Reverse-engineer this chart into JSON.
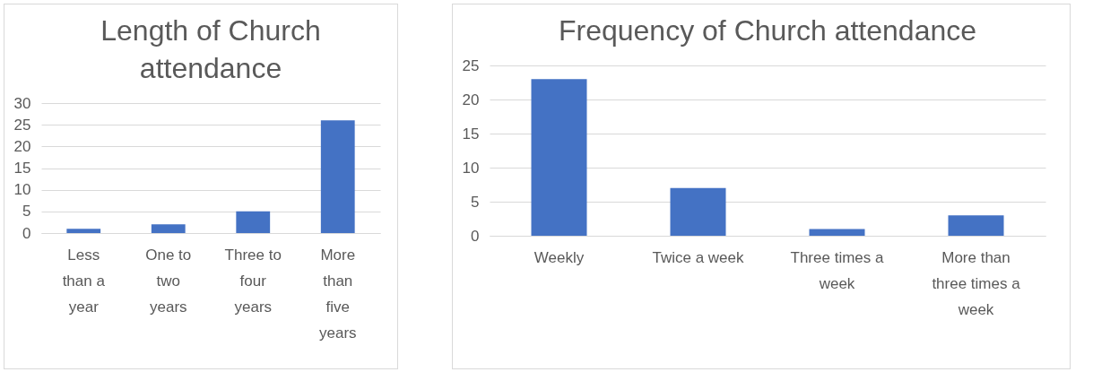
{
  "chart_data": [
    {
      "type": "bar",
      "title": "Length of Church attendance",
      "categories": [
        "Less than a year",
        "One to two years",
        "Three to four years",
        "More than five years"
      ],
      "values": [
        1,
        2,
        5,
        26
      ],
      "color": "#4472c4",
      "ylim": [
        0,
        30
      ],
      "yticks": [
        0,
        5,
        10,
        15,
        20,
        25,
        30
      ],
      "grid": "y"
    },
    {
      "type": "bar",
      "title": "Frequency of Church attendance",
      "categories": [
        "Weekly",
        "Twice a week",
        "Three times a week",
        "More than three times a week"
      ],
      "values": [
        23,
        7,
        1,
        3
      ],
      "color": "#4472c4",
      "ylim": [
        0,
        25
      ],
      "yticks": [
        0,
        5,
        10,
        15,
        20,
        25
      ],
      "grid": "y"
    }
  ]
}
